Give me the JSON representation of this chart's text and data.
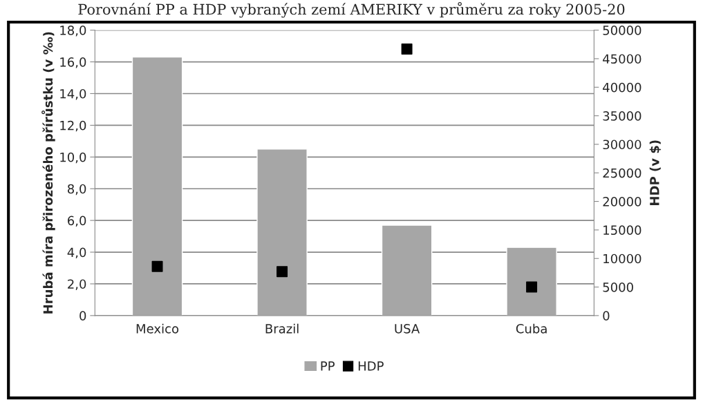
{
  "chart_data": {
    "type": "bar",
    "title": "Porovnání PP a HDP vybraných zemí AMERIKY v průměru za roky 2005-20",
    "ylabel": "Hrubá míra přirozeného přírůstku (v ‰)",
    "y2label": "HDP (v $)",
    "categories": [
      "Mexico",
      "Brazil",
      "USA",
      "Cuba"
    ],
    "series": [
      {
        "name": "PP",
        "color": "#a6a6a6",
        "values": [
          16.3,
          10.5,
          5.7,
          4.3
        ]
      },
      {
        "name": "HDP",
        "type": "scatter",
        "axis": "y2",
        "color": "#000000",
        "marker": "square",
        "values": [
          8600,
          7700,
          46700,
          5000
        ]
      }
    ],
    "ylim": [
      0,
      18
    ],
    "yticks": [
      0,
      {
        "value": 2,
        "label": "2,0"
      },
      {
        "value": 4,
        "label": "4,0"
      },
      {
        "value": 6,
        "label": "6,0"
      },
      {
        "value": 8,
        "label": "8,0"
      },
      {
        "value": 10,
        "label": "10,0"
      },
      {
        "value": 12,
        "label": "12,0"
      },
      {
        "value": 14,
        "label": "14,0"
      },
      {
        "value": 16,
        "label": "16,0"
      },
      {
        "value": 18,
        "label": "18,0"
      }
    ],
    "y2lim": [
      0,
      50000
    ],
    "y2ticks": [
      0,
      5000,
      10000,
      15000,
      20000,
      25000,
      30000,
      35000,
      40000,
      45000,
      50000
    ],
    "grid": "y",
    "legend": "bottom"
  }
}
